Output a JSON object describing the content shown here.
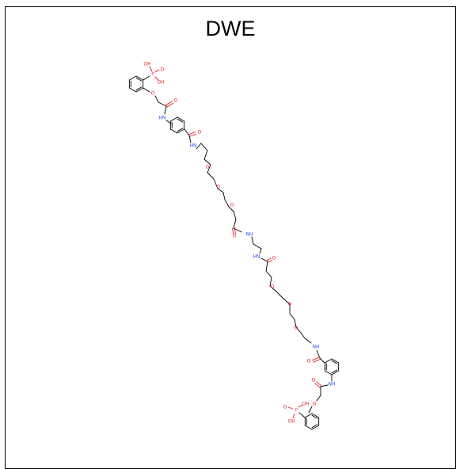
{
  "title": "DWE",
  "colors": {
    "bond": "#000000",
    "oxygen": "#e8202a",
    "nitrogen": "#3050f8",
    "phosphorus": "#ff8000",
    "phosphorus_label": "#ff3da0"
  },
  "atoms": {
    "o": "O",
    "oh": "OH",
    "p": "P",
    "nh": "NH",
    "hn": "HN",
    "n": "N"
  }
}
